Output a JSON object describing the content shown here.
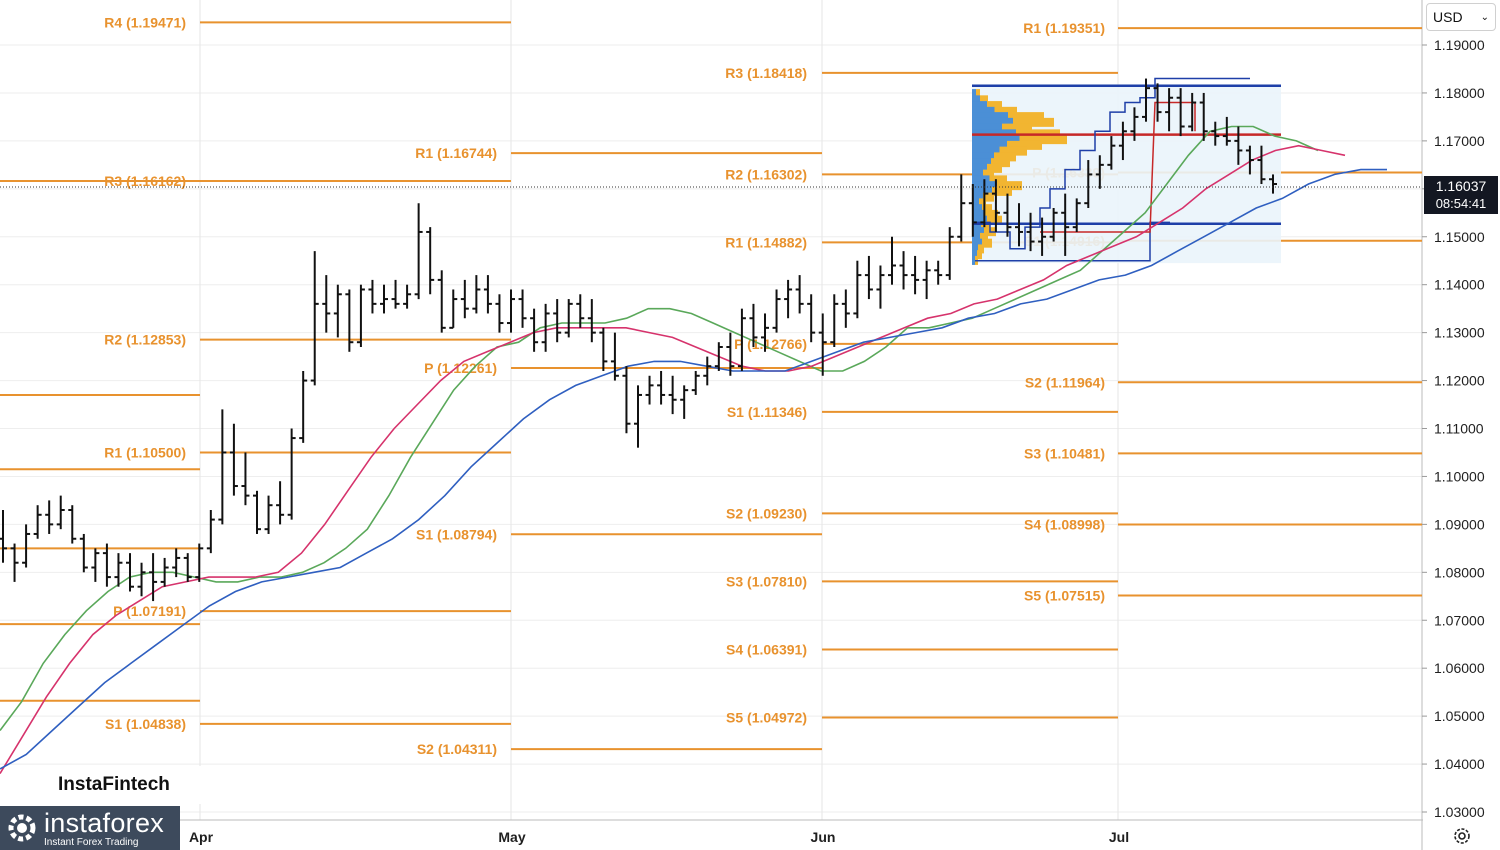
{
  "currency": {
    "label": "USD",
    "dropdown_icon": "chevron-down-icon"
  },
  "price_badge": {
    "price": "1.16037",
    "countdown": "08:54:41"
  },
  "watermark": "InstaFintech",
  "brand": {
    "name": "instaforex",
    "tagline": "Instant Forex Trading"
  },
  "colors": {
    "pivot": "#e8922e",
    "ma_fast": "#5aa85a",
    "ma_mid": "#d6336c",
    "ma_slow": "#2f5fc0",
    "vp_poc": "#c62828",
    "vp_box": "#1e3fa8",
    "bars": "#111111"
  },
  "chart_data": {
    "type": "ohlc",
    "y_ticks": [
      "1.19000",
      "1.18000",
      "1.17000",
      "1.16000",
      "1.15000",
      "1.14000",
      "1.13000",
      "1.12000",
      "1.11000",
      "1.10000",
      "1.09000",
      "1.08000",
      "1.07000",
      "1.06000",
      "1.05000",
      "1.04000",
      "1.03000"
    ],
    "x_labels": [
      "Apr",
      "May",
      "Jun",
      "Jul"
    ],
    "ylim": [
      1.028,
      1.2035
    ],
    "current_price": 1.16037,
    "pivot_sets": [
      {
        "levels": [
          {
            "label": "R4 (1.19471)",
            "value": 1.19471
          },
          {
            "label": "R3 (1.16162)",
            "value": 1.16162
          },
          {
            "label": "R2 (1.12853)",
            "value": 1.12853
          },
          {
            "label": "R1 (1.10500)",
            "value": 1.105
          },
          {
            "label": "P (1.07191)",
            "value": 1.07191
          },
          {
            "label": "S1 (1.04838)",
            "value": 1.04838
          }
        ]
      },
      {
        "levels": [
          {
            "label": "R1 (1.16744)",
            "value": 1.16744
          },
          {
            "label": "P (1.12261)",
            "value": 1.12261
          },
          {
            "label": "S1 (1.08794)",
            "value": 1.08794
          },
          {
            "label": "S2 (1.04311)",
            "value": 1.04311
          }
        ]
      },
      {
        "levels": [
          {
            "label": "R3 (1.18418)",
            "value": 1.18418
          },
          {
            "label": "R2 (1.16302)",
            "value": 1.16302
          },
          {
            "label": "R1 (1.14882)",
            "value": 1.14882
          },
          {
            "label": "P (1.12766)",
            "value": 1.12766
          },
          {
            "label": "S1 (1.11346)",
            "value": 1.11346
          },
          {
            "label": "S2 (1.09230)",
            "value": 1.0923
          },
          {
            "label": "S3 (1.07810)",
            "value": 1.0781
          },
          {
            "label": "S4 (1.06391)",
            "value": 1.06391
          },
          {
            "label": "S5 (1.04972)",
            "value": 1.04972
          }
        ]
      },
      {
        "levels": [
          {
            "label": "R1 (1.19351)",
            "value": 1.19351
          },
          {
            "label": "P (1.16339)",
            "value": 1.16339
          },
          {
            "label": "S1 (1.14916)",
            "value": 1.14916
          },
          {
            "label": "S2 (1.11964)",
            "value": 1.11964
          },
          {
            "label": "S3 (1.10481)",
            "value": 1.10481
          },
          {
            "label": "S4 (1.08998)",
            "value": 1.08998
          },
          {
            "label": "S5 (1.07515)",
            "value": 1.07515
          }
        ]
      }
    ],
    "ohlc": [
      [
        1.087,
        1.093,
        1.082,
        1.085
      ],
      [
        1.085,
        1.086,
        1.078,
        1.082
      ],
      [
        1.082,
        1.09,
        1.081,
        1.088
      ],
      [
        1.088,
        1.094,
        1.087,
        1.092
      ],
      [
        1.092,
        1.095,
        1.088,
        1.09
      ],
      [
        1.09,
        1.096,
        1.089,
        1.093
      ],
      [
        1.093,
        1.094,
        1.086,
        1.087
      ],
      [
        1.087,
        1.088,
        1.08,
        1.081
      ],
      [
        1.081,
        1.085,
        1.078,
        1.084
      ],
      [
        1.084,
        1.086,
        1.077,
        1.079
      ],
      [
        1.079,
        1.084,
        1.077,
        1.082
      ],
      [
        1.082,
        1.084,
        1.076,
        1.077
      ],
      [
        1.077,
        1.082,
        1.075,
        1.08
      ],
      [
        1.08,
        1.084,
        1.074,
        1.078
      ],
      [
        1.078,
        1.083,
        1.077,
        1.081
      ],
      [
        1.081,
        1.085,
        1.079,
        1.083
      ],
      [
        1.083,
        1.084,
        1.078,
        1.079
      ],
      [
        1.079,
        1.086,
        1.078,
        1.085
      ],
      [
        1.085,
        1.093,
        1.084,
        1.091
      ],
      [
        1.091,
        1.114,
        1.09,
        1.105
      ],
      [
        1.105,
        1.111,
        1.096,
        1.098
      ],
      [
        1.098,
        1.105,
        1.094,
        1.096
      ],
      [
        1.096,
        1.097,
        1.088,
        1.089
      ],
      [
        1.089,
        1.096,
        1.088,
        1.094
      ],
      [
        1.094,
        1.099,
        1.09,
        1.092
      ],
      [
        1.092,
        1.11,
        1.091,
        1.108
      ],
      [
        1.108,
        1.122,
        1.107,
        1.12
      ],
      [
        1.12,
        1.147,
        1.119,
        1.136
      ],
      [
        1.136,
        1.142,
        1.13,
        1.134
      ],
      [
        1.134,
        1.14,
        1.129,
        1.138
      ],
      [
        1.138,
        1.139,
        1.126,
        1.128
      ],
      [
        1.128,
        1.14,
        1.127,
        1.139
      ],
      [
        1.139,
        1.141,
        1.134,
        1.136
      ],
      [
        1.136,
        1.14,
        1.134,
        1.137
      ],
      [
        1.137,
        1.141,
        1.135,
        1.136
      ],
      [
        1.136,
        1.14,
        1.135,
        1.138
      ],
      [
        1.138,
        1.157,
        1.137,
        1.151
      ],
      [
        1.151,
        1.152,
        1.138,
        1.141
      ],
      [
        1.141,
        1.143,
        1.13,
        1.131
      ],
      [
        1.131,
        1.139,
        1.131,
        1.137
      ],
      [
        1.137,
        1.141,
        1.133,
        1.135
      ],
      [
        1.135,
        1.142,
        1.134,
        1.139
      ],
      [
        1.139,
        1.142,
        1.134,
        1.136
      ],
      [
        1.136,
        1.138,
        1.13,
        1.132
      ],
      [
        1.132,
        1.139,
        1.13,
        1.137
      ],
      [
        1.137,
        1.139,
        1.131,
        1.133
      ],
      [
        1.133,
        1.135,
        1.126,
        1.128
      ],
      [
        1.128,
        1.136,
        1.126,
        1.134
      ],
      [
        1.134,
        1.137,
        1.128,
        1.13
      ],
      [
        1.13,
        1.137,
        1.129,
        1.136
      ],
      [
        1.136,
        1.138,
        1.131,
        1.133
      ],
      [
        1.133,
        1.137,
        1.128,
        1.13
      ],
      [
        1.13,
        1.131,
        1.122,
        1.124
      ],
      [
        1.124,
        1.13,
        1.12,
        1.121
      ],
      [
        1.121,
        1.123,
        1.109,
        1.111
      ],
      [
        1.111,
        1.119,
        1.106,
        1.117
      ],
      [
        1.117,
        1.121,
        1.115,
        1.119
      ],
      [
        1.119,
        1.122,
        1.115,
        1.117
      ],
      [
        1.117,
        1.121,
        1.113,
        1.116
      ],
      [
        1.116,
        1.119,
        1.112,
        1.118
      ],
      [
        1.118,
        1.122,
        1.117,
        1.121
      ],
      [
        1.121,
        1.125,
        1.119,
        1.123
      ],
      [
        1.123,
        1.128,
        1.122,
        1.127
      ],
      [
        1.127,
        1.13,
        1.121,
        1.123
      ],
      [
        1.123,
        1.135,
        1.122,
        1.133
      ],
      [
        1.133,
        1.136,
        1.127,
        1.129
      ],
      [
        1.129,
        1.134,
        1.126,
        1.131
      ],
      [
        1.131,
        1.139,
        1.13,
        1.137
      ],
      [
        1.137,
        1.141,
        1.133,
        1.139
      ],
      [
        1.139,
        1.142,
        1.134,
        1.136
      ],
      [
        1.136,
        1.138,
        1.128,
        1.13
      ],
      [
        1.13,
        1.134,
        1.121,
        1.128
      ],
      [
        1.128,
        1.138,
        1.127,
        1.136
      ],
      [
        1.136,
        1.139,
        1.131,
        1.134
      ],
      [
        1.134,
        1.145,
        1.133,
        1.142
      ],
      [
        1.142,
        1.146,
        1.137,
        1.139
      ],
      [
        1.139,
        1.144,
        1.135,
        1.142
      ],
      [
        1.142,
        1.15,
        1.14,
        1.144
      ],
      [
        1.144,
        1.147,
        1.139,
        1.142
      ],
      [
        1.142,
        1.146,
        1.138,
        1.141
      ],
      [
        1.141,
        1.145,
        1.137,
        1.143
      ],
      [
        1.143,
        1.145,
        1.14,
        1.142
      ],
      [
        1.142,
        1.152,
        1.141,
        1.15
      ],
      [
        1.15,
        1.163,
        1.149,
        1.157
      ],
      [
        1.157,
        1.161,
        1.15,
        1.153
      ],
      [
        1.153,
        1.162,
        1.152,
        1.159
      ],
      [
        1.159,
        1.162,
        1.151,
        1.155
      ],
      [
        1.155,
        1.159,
        1.15,
        1.152
      ],
      [
        1.152,
        1.157,
        1.148,
        1.151
      ],
      [
        1.151,
        1.155,
        1.147,
        1.149
      ],
      [
        1.149,
        1.154,
        1.146,
        1.15
      ],
      [
        1.15,
        1.156,
        1.149,
        1.155
      ],
      [
        1.155,
        1.159,
        1.146,
        1.152
      ],
      [
        1.152,
        1.158,
        1.151,
        1.157
      ],
      [
        1.157,
        1.166,
        1.156,
        1.163
      ],
      [
        1.163,
        1.167,
        1.16,
        1.165
      ],
      [
        1.165,
        1.171,
        1.164,
        1.169
      ],
      [
        1.169,
        1.174,
        1.166,
        1.172
      ],
      [
        1.172,
        1.177,
        1.17,
        1.175
      ],
      [
        1.175,
        1.183,
        1.174,
        1.181
      ],
      [
        1.181,
        1.182,
        1.174,
        1.176
      ],
      [
        1.176,
        1.181,
        1.172,
        1.179
      ],
      [
        1.179,
        1.181,
        1.171,
        1.173
      ],
      [
        1.173,
        1.18,
        1.172,
        1.178
      ],
      [
        1.178,
        1.18,
        1.17,
        1.172
      ],
      [
        1.172,
        1.174,
        1.169,
        1.171
      ],
      [
        1.171,
        1.175,
        1.169,
        1.17
      ],
      [
        1.17,
        1.173,
        1.165,
        1.168
      ],
      [
        1.168,
        1.169,
        1.163,
        1.166
      ],
      [
        1.166,
        1.169,
        1.161,
        1.162
      ],
      [
        1.162,
        1.163,
        1.159,
        1.161
      ]
    ],
    "ma_fast": [
      1.047,
      1.053,
      1.061,
      1.067,
      1.072,
      1.076,
      1.079,
      1.08,
      1.08,
      1.079,
      1.078,
      1.078,
      1.079,
      1.079,
      1.08,
      1.082,
      1.085,
      1.089,
      1.096,
      1.104,
      1.111,
      1.118,
      1.123,
      1.127,
      1.128,
      1.131,
      1.132,
      1.132,
      1.132,
      1.133,
      1.135,
      1.135,
      1.134,
      1.132,
      1.13,
      1.128,
      1.126,
      1.124,
      1.122,
      1.122,
      1.124,
      1.127,
      1.131,
      1.131,
      1.132,
      1.133,
      1.135,
      1.137,
      1.139,
      1.141,
      1.143,
      1.147,
      1.151,
      1.155,
      1.161,
      1.167,
      1.172,
      1.173,
      1.173,
      1.171,
      1.17,
      1.168
    ],
    "ma_mid": [
      1.038,
      1.046,
      1.054,
      1.061,
      1.067,
      1.071,
      1.074,
      1.077,
      1.078,
      1.079,
      1.079,
      1.079,
      1.08,
      1.084,
      1.09,
      1.097,
      1.104,
      1.11,
      1.115,
      1.12,
      1.124,
      1.126,
      1.128,
      1.13,
      1.131,
      1.131,
      1.131,
      1.131,
      1.13,
      1.129,
      1.127,
      1.125,
      1.123,
      1.122,
      1.122,
      1.123,
      1.125,
      1.127,
      1.129,
      1.131,
      1.133,
      1.134,
      1.136,
      1.137,
      1.139,
      1.141,
      1.144,
      1.146,
      1.148,
      1.15,
      1.153,
      1.156,
      1.16,
      1.163,
      1.166,
      1.168,
      1.169,
      1.168,
      1.167
    ],
    "ma_slow": [
      1.039,
      1.042,
      1.047,
      1.052,
      1.057,
      1.061,
      1.065,
      1.069,
      1.073,
      1.076,
      1.078,
      1.079,
      1.08,
      1.081,
      1.084,
      1.087,
      1.091,
      1.096,
      1.102,
      1.107,
      1.112,
      1.116,
      1.119,
      1.121,
      1.123,
      1.124,
      1.124,
      1.123,
      1.122,
      1.122,
      1.122,
      1.124,
      1.126,
      1.128,
      1.129,
      1.13,
      1.131,
      1.133,
      1.134,
      1.136,
      1.137,
      1.139,
      1.141,
      1.142,
      1.144,
      1.147,
      1.15,
      1.153,
      1.156,
      1.158,
      1.161,
      1.163,
      1.164,
      1.164
    ]
  }
}
